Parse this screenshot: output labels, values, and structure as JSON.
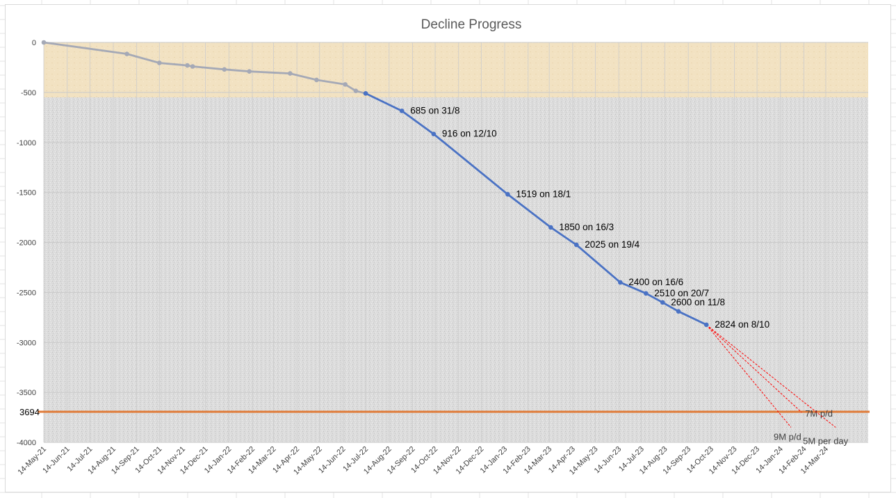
{
  "chart_data": {
    "type": "line",
    "title": "Decline Progress",
    "xlabel": "",
    "ylabel": "",
    "ylim": [
      -4000,
      0
    ],
    "yticks": [
      "0",
      "-500",
      "-1000",
      "-1500",
      "-2000",
      "-2500",
      "-3000",
      "-3500",
      "-4000"
    ],
    "x_tick_labels": [
      "14-May-21",
      "14-Jun-21",
      "14-Jul-21",
      "14-Aug-21",
      "14-Sep-21",
      "14-Oct-21",
      "14-Nov-21",
      "14-Dec-21",
      "14-Jan-22",
      "14-Feb-22",
      "14-Mar-22",
      "14-Apr-22",
      "14-May-22",
      "14-Jun-22",
      "14-Jul-22",
      "14-Aug-22",
      "14-Sep-22",
      "14-Oct-22",
      "14-Nov-22",
      "14-Dec-22",
      "14-Jan-23",
      "14-Feb-23",
      "14-Mar-23",
      "14-Apr-23",
      "14-May-23",
      "14-Jun-23",
      "14-Jul-23",
      "14-Aug-23",
      "14-Sep-23",
      "14-Oct-23",
      "14-Nov-23",
      "14-Dec-23",
      "14-Jan-24",
      "14-Feb-24",
      "14-Mar-24"
    ],
    "grid": true,
    "colors": {
      "early_series": "#a5a9b6",
      "late_series": "#4a72c4",
      "target_line": "#e07b39",
      "projection": "#ff0000",
      "early_band": "#f3e4c5",
      "late_band": "#e3e3e3"
    },
    "series": [
      {
        "points": [
          {
            "x": "2021-05-14",
            "y": 0
          },
          {
            "x": "2021-09-01",
            "y": -115
          },
          {
            "x": "2021-10-14",
            "y": -205
          },
          {
            "x": "2021-11-20",
            "y": -230
          },
          {
            "x": "2021-11-27",
            "y": -240
          },
          {
            "x": "2022-01-08",
            "y": -270
          },
          {
            "x": "2022-02-10",
            "y": -290
          },
          {
            "x": "2022-04-05",
            "y": -310
          },
          {
            "x": "2022-05-10",
            "y": -375
          },
          {
            "x": "2022-06-17",
            "y": -420
          },
          {
            "x": "2022-07-01",
            "y": -485
          },
          {
            "x": "2022-07-14",
            "y": -510
          }
        ]
      },
      {
        "points": [
          {
            "x": "2022-07-14",
            "y": -510
          },
          {
            "x": "2022-08-31",
            "y": -685
          },
          {
            "x": "2022-10-12",
            "y": -916
          },
          {
            "x": "2023-01-18",
            "y": -1519
          },
          {
            "x": "2023-03-16",
            "y": -1850
          },
          {
            "x": "2023-04-19",
            "y": -2025
          },
          {
            "x": "2023-06-16",
            "y": -2400
          },
          {
            "x": "2023-07-20",
            "y": -2510
          },
          {
            "x": "2023-08-11",
            "y": -2600
          },
          {
            "x": "2023-09-01",
            "y": -2690
          },
          {
            "x": "2023-10-08",
            "y": -2824
          }
        ]
      }
    ],
    "point_labels": [
      {
        "x": "2022-08-31",
        "y": -685,
        "text": "685 on 31/8"
      },
      {
        "x": "2022-10-12",
        "y": -916,
        "text": "916 on 12/10"
      },
      {
        "x": "2023-01-18",
        "y": -1519,
        "text": "1519 on 18/1"
      },
      {
        "x": "2023-03-16",
        "y": -1850,
        "text": "1850 on 16/3"
      },
      {
        "x": "2023-04-19",
        "y": -2025,
        "text": "2025 on 19/4"
      },
      {
        "x": "2023-06-16",
        "y": -2400,
        "text": "2400 on 16/6"
      },
      {
        "x": "2023-07-20",
        "y": -2510,
        "text": "2510 on 20/7"
      },
      {
        "x": "2023-08-11",
        "y": -2600,
        "text": "2600 on 11/8"
      },
      {
        "x": "2023-10-08",
        "y": -2824,
        "text": "2824 on 8/10"
      }
    ],
    "target": {
      "y": -3694,
      "label": "3694"
    },
    "projections": [
      {
        "label": "9M p/d",
        "from": {
          "x": "2023-10-08",
          "y": -2824
        },
        "to": {
          "x": "2024-01-28",
          "y": -3850
        }
      },
      {
        "label": "7M p/d",
        "from": {
          "x": "2023-10-08",
          "y": -2824
        },
        "to": {
          "x": "2024-02-11",
          "y": -3700
        }
      },
      {
        "label": "5M per day",
        "from": {
          "x": "2023-10-08",
          "y": -2824
        },
        "to": {
          "x": "2024-03-27",
          "y": -3850
        }
      }
    ]
  }
}
